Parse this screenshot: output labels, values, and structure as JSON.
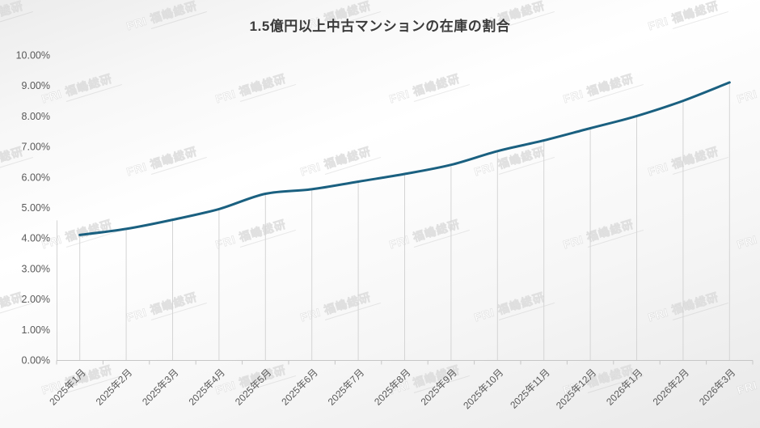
{
  "title": "1.5億円以上中古マンションの在庫の割合",
  "watermark": {
    "text": "FRI 福嶋総研"
  },
  "chart_data": {
    "type": "line",
    "title": "1.5億円以上中古マンションの在庫の割合",
    "categories": [
      "2025年1月",
      "2025年2月",
      "2025年3月",
      "2025年4月",
      "2025年5月",
      "2025年6月",
      "2025年7月",
      "2025年8月",
      "2025年9月",
      "2025年10月",
      "2025年11月",
      "2025年12月",
      "2026年1月",
      "2026年2月",
      "2026年3月"
    ],
    "values": [
      4.1,
      4.3,
      4.6,
      4.95,
      5.45,
      5.6,
      5.85,
      6.1,
      6.4,
      6.85,
      7.2,
      7.6,
      8.0,
      8.5,
      9.1
    ],
    "unit": "%",
    "ylim": [
      0,
      10
    ],
    "y_tick_step": 1,
    "y_tick_labels": [
      "0.00%",
      "1.00%",
      "2.00%",
      "3.00%",
      "4.00%",
      "5.00%",
      "6.00%",
      "7.00%",
      "8.00%",
      "9.00%",
      "10.00%"
    ],
    "xlabel": "",
    "ylabel": "",
    "legend": "none",
    "grid": "vertical-drop-lines-per-category",
    "line_smoothing": true,
    "colors": {
      "line": "#1A6080",
      "axis": "#C6C6C6",
      "drop_line": "#D4D4D4",
      "tick_label": "#595959"
    }
  }
}
